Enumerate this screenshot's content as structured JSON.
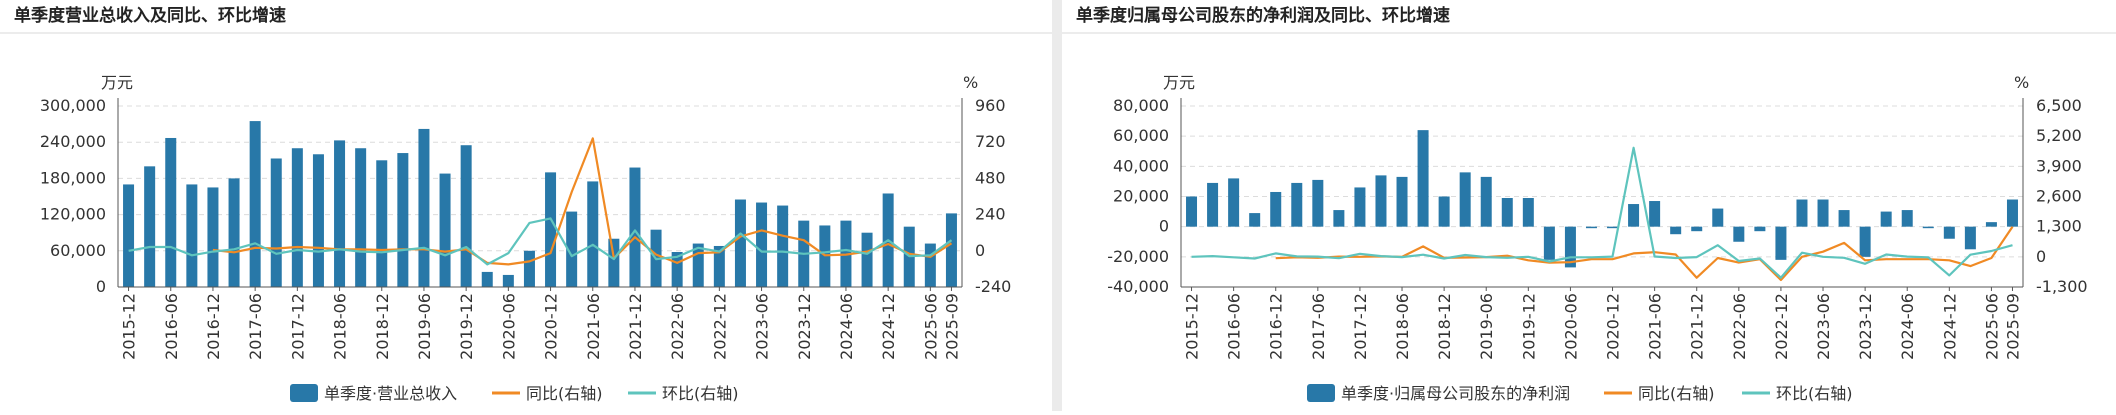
{
  "panels": [
    {
      "title": "单季度营业总收入及同比、环比增速",
      "chart_data": {
        "type": "bar",
        "categories": [
          "2015-12",
          "2016-03",
          "2016-06",
          "2016-09",
          "2016-12",
          "2017-03",
          "2017-06",
          "2017-09",
          "2017-12",
          "2018-03",
          "2018-06",
          "2018-09",
          "2018-12",
          "2019-03",
          "2019-06",
          "2019-09",
          "2019-12",
          "2020-03",
          "2020-06",
          "2020-09",
          "2020-12",
          "2021-03",
          "2021-06",
          "2021-09",
          "2021-12",
          "2022-03",
          "2022-06",
          "2022-09",
          "2022-12",
          "2023-03",
          "2023-06",
          "2023-09",
          "2023-12",
          "2024-03",
          "2024-06",
          "2024-09",
          "2024-12",
          "2025-03",
          "2025-06",
          "2025-09"
        ],
        "tick_labels": [
          "2015-12",
          "2016-06",
          "2016-12",
          "2017-06",
          "2017-12",
          "2018-06",
          "2018-12",
          "2019-06",
          "2019-12",
          "2020-06",
          "2020-12",
          "2021-06",
          "2021-12",
          "2022-06",
          "2022-12",
          "2023-06",
          "2023-12",
          "2024-06",
          "2024-12",
          "2025-06",
          "2025-09"
        ],
        "ylabel_left": "万元",
        "ylabel_right": "%",
        "ylim_left": [
          0,
          300000
        ],
        "yticks_left": [
          "0",
          "60,000",
          "120,000",
          "180,000",
          "240,000",
          "300,000"
        ],
        "ylim_right": [
          -240,
          960
        ],
        "yticks_right": [
          "-240",
          "0",
          "240",
          "480",
          "720",
          "960"
        ],
        "series": [
          {
            "name": "单季度·营业总收入",
            "kind": "bar",
            "axis": "left",
            "color": "#2878a8",
            "values": [
              170000,
              200000,
              247000,
              170000,
              165000,
              180000,
              275000,
              213000,
              230000,
              220000,
              243000,
              230000,
              210000,
              222000,
              262000,
              188000,
              235000,
              25000,
              20000,
              60000,
              190000,
              125000,
              175000,
              80000,
              198000,
              95000,
              58000,
              72000,
              68000,
              145000,
              140000,
              135000,
              110000,
              102000,
              110000,
              90000,
              155000,
              100000,
              72000,
              122000
            ]
          },
          {
            "name": "同比(右轴)",
            "kind": "line",
            "axis": "right",
            "color": "#f08a24",
            "values": [
              null,
              null,
              null,
              null,
              5,
              -10,
              20,
              15,
              25,
              20,
              10,
              10,
              5,
              10,
              10,
              -5,
              10,
              -80,
              -90,
              -70,
              -15,
              390,
              745,
              -50,
              90,
              -25,
              -80,
              -15,
              -10,
              95,
              135,
              100,
              70,
              -30,
              -25,
              -5,
              45,
              -20,
              -40,
              50
            ]
          },
          {
            "name": "环比(右轴)",
            "kind": "line",
            "axis": "right",
            "color": "#5ec4bd",
            "values": [
              0,
              25,
              25,
              -30,
              -5,
              10,
              50,
              -20,
              5,
              -5,
              10,
              -5,
              -10,
              5,
              20,
              -30,
              25,
              -90,
              -15,
              185,
              215,
              -35,
              40,
              -55,
              135,
              -55,
              -40,
              20,
              -5,
              115,
              -5,
              -5,
              -20,
              -10,
              5,
              -20,
              70,
              -35,
              -30,
              70
            ]
          }
        ]
      }
    },
    {
      "title": "单季度归属母公司股东的净利润及同比、环比增速",
      "chart_data": {
        "type": "bar",
        "categories": [
          "2015-12",
          "2016-03",
          "2016-06",
          "2016-09",
          "2016-12",
          "2017-03",
          "2017-06",
          "2017-09",
          "2017-12",
          "2018-03",
          "2018-06",
          "2018-09",
          "2018-12",
          "2019-03",
          "2019-06",
          "2019-09",
          "2019-12",
          "2020-03",
          "2020-06",
          "2020-09",
          "2020-12",
          "2021-03",
          "2021-06",
          "2021-09",
          "2021-12",
          "2022-03",
          "2022-06",
          "2022-09",
          "2022-12",
          "2023-03",
          "2023-06",
          "2023-09",
          "2023-12",
          "2024-03",
          "2024-06",
          "2024-09",
          "2024-12",
          "2025-03",
          "2025-06",
          "2025-09"
        ],
        "tick_labels": [
          "2015-12",
          "2016-06",
          "2016-12",
          "2017-06",
          "2017-12",
          "2018-06",
          "2018-12",
          "2019-06",
          "2019-12",
          "2020-06",
          "2020-12",
          "2021-06",
          "2021-12",
          "2022-06",
          "2022-12",
          "2023-06",
          "2023-12",
          "2024-06",
          "2024-12",
          "2025-06",
          "2025-09"
        ],
        "ylabel_left": "万元",
        "ylabel_right": "%",
        "ylim_left": [
          -40000,
          80000
        ],
        "yticks_left": [
          "-40,000",
          "-20,000",
          "0",
          "20,000",
          "40,000",
          "60,000",
          "80,000"
        ],
        "ylim_right": [
          -1300,
          6500
        ],
        "yticks_right": [
          "-1,300",
          "0",
          "1,300",
          "2,600",
          "3,900",
          "5,200",
          "6,500"
        ],
        "series": [
          {
            "name": "单季度·归属母公司股东的净利润",
            "kind": "bar",
            "axis": "left",
            "color": "#2878a8",
            "values": [
              20000,
              29000,
              32000,
              9000,
              23000,
              29000,
              31000,
              11000,
              26000,
              34000,
              33000,
              64000,
              20000,
              36000,
              33000,
              19000,
              19000,
              -22000,
              -27000,
              -1000,
              -1000,
              15000,
              17000,
              -5000,
              -3000,
              12000,
              -10000,
              -3000,
              -22000,
              18000,
              18000,
              11000,
              -20000,
              10000,
              11000,
              -1000,
              -8000,
              -15000,
              3000,
              18000
            ]
          },
          {
            "name": "同比(右轴)",
            "kind": "line",
            "axis": "right",
            "color": "#f08a24",
            "values": [
              null,
              null,
              null,
              null,
              -60,
              -20,
              -40,
              10,
              0,
              20,
              0,
              450,
              -40,
              -30,
              -10,
              50,
              -150,
              -250,
              -230,
              -100,
              -100,
              150,
              200,
              100,
              -900,
              -50,
              -250,
              -100,
              -1000,
              0,
              220,
              600,
              -150,
              -100,
              -100,
              -100,
              -150,
              -400,
              -50,
              1300
            ]
          },
          {
            "name": "环比(右轴)",
            "kind": "line",
            "axis": "right",
            "color": "#5ec4bd",
            "values": [
              0,
              30,
              -20,
              -70,
              150,
              20,
              10,
              -60,
              130,
              30,
              -10,
              90,
              -70,
              80,
              -10,
              -40,
              0,
              -200,
              -20,
              -20,
              10,
              4700,
              15,
              -50,
              -10,
              500,
              -180,
              -70,
              -900,
              180,
              0,
              -40,
              -300,
              100,
              10,
              -20,
              -800,
              90,
              250,
              500
            ]
          }
        ]
      }
    }
  ]
}
